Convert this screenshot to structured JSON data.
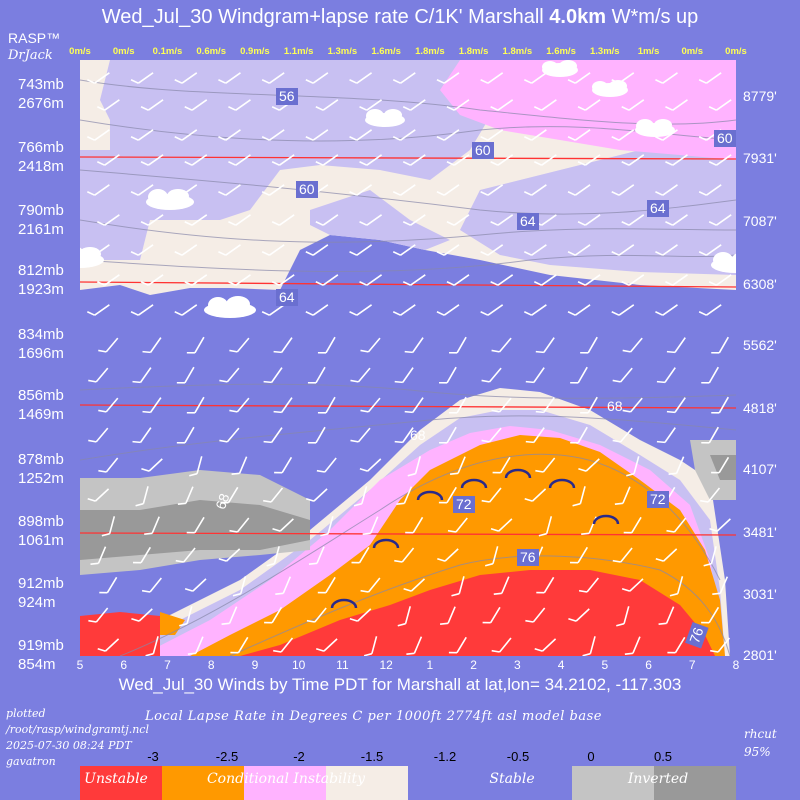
{
  "header": {
    "title_prefix": "Wed_Jul_30 Windgram+lapse rate C/1K'  Marshall ",
    "title_bold": "4.0km",
    "title_suffix": "  W*m/s up",
    "brand": "RASP™",
    "author": "DrJack"
  },
  "footer": {
    "x_title": "Wed_Jul_30 Winds by Time PDT for Marshall at lat,lon= 34.2102, -117.303",
    "plotted_lines": [
      "plotted",
      "/root/rasp/windgramtj.ncl",
      "2025-07-30 08:24 PDT",
      "gavatron"
    ],
    "lapse_title": "Local Lapse Rate in Degrees C per 1000ft  2774ft asl model base",
    "rhcut_label": "rhcut",
    "rhcut_value": "95%"
  },
  "colorbar": {
    "ticks": [
      "-3",
      "-2.5",
      "-2",
      "-1.5",
      "-1.2",
      "-0.5",
      "0",
      "0.5"
    ],
    "labels": [
      "Unstable",
      "Conditional Instability",
      "Stable",
      "Inverted"
    ],
    "colors": [
      "#ff3a3a",
      "#ff9900",
      "#ffb3ff",
      "#f5ede6",
      "#7b7ee0",
      "#7b7ee0",
      "#c4c4c4",
      "#999999"
    ]
  },
  "chart_data": {
    "type": "heatmap",
    "x_ticks": [
      "5",
      "6",
      "7",
      "8",
      "9",
      "10",
      "11",
      "12",
      "1",
      "2",
      "3",
      "4",
      "5",
      "6",
      "7",
      "8"
    ],
    "wstar_labels": [
      "0m/s",
      "0m/s",
      "0.1m/s",
      "0.6m/s",
      "0.9m/s",
      "1.1m/s",
      "1.3m/s",
      "1.6m/s",
      "1.8m/s",
      "1.8m/s",
      "1.8m/s",
      "1.6m/s",
      "1.3m/s",
      "1m/s",
      "0m/s",
      "0m/s"
    ],
    "pressure_levels": [
      "743mb",
      "766mb",
      "790mb",
      "812mb",
      "834mb",
      "856mb",
      "878mb",
      "898mb",
      "912mb",
      "919mb"
    ],
    "height_m": [
      "2676m",
      "2418m",
      "2161m",
      "1923m",
      "1696m",
      "1469m",
      "1252m",
      "1061m",
      "924m",
      "854m"
    ],
    "height_ft": [
      "8779'",
      "7931'",
      "7087'",
      "6308'",
      "5562'",
      "4818'",
      "4107'",
      "3481'",
      "3031'",
      "2801'"
    ],
    "contour_labels": [
      "56",
      "60",
      "60",
      "60",
      "64",
      "64",
      "64",
      "68",
      "68",
      "68",
      "72",
      "72",
      "76",
      "76"
    ],
    "grid": true
  }
}
